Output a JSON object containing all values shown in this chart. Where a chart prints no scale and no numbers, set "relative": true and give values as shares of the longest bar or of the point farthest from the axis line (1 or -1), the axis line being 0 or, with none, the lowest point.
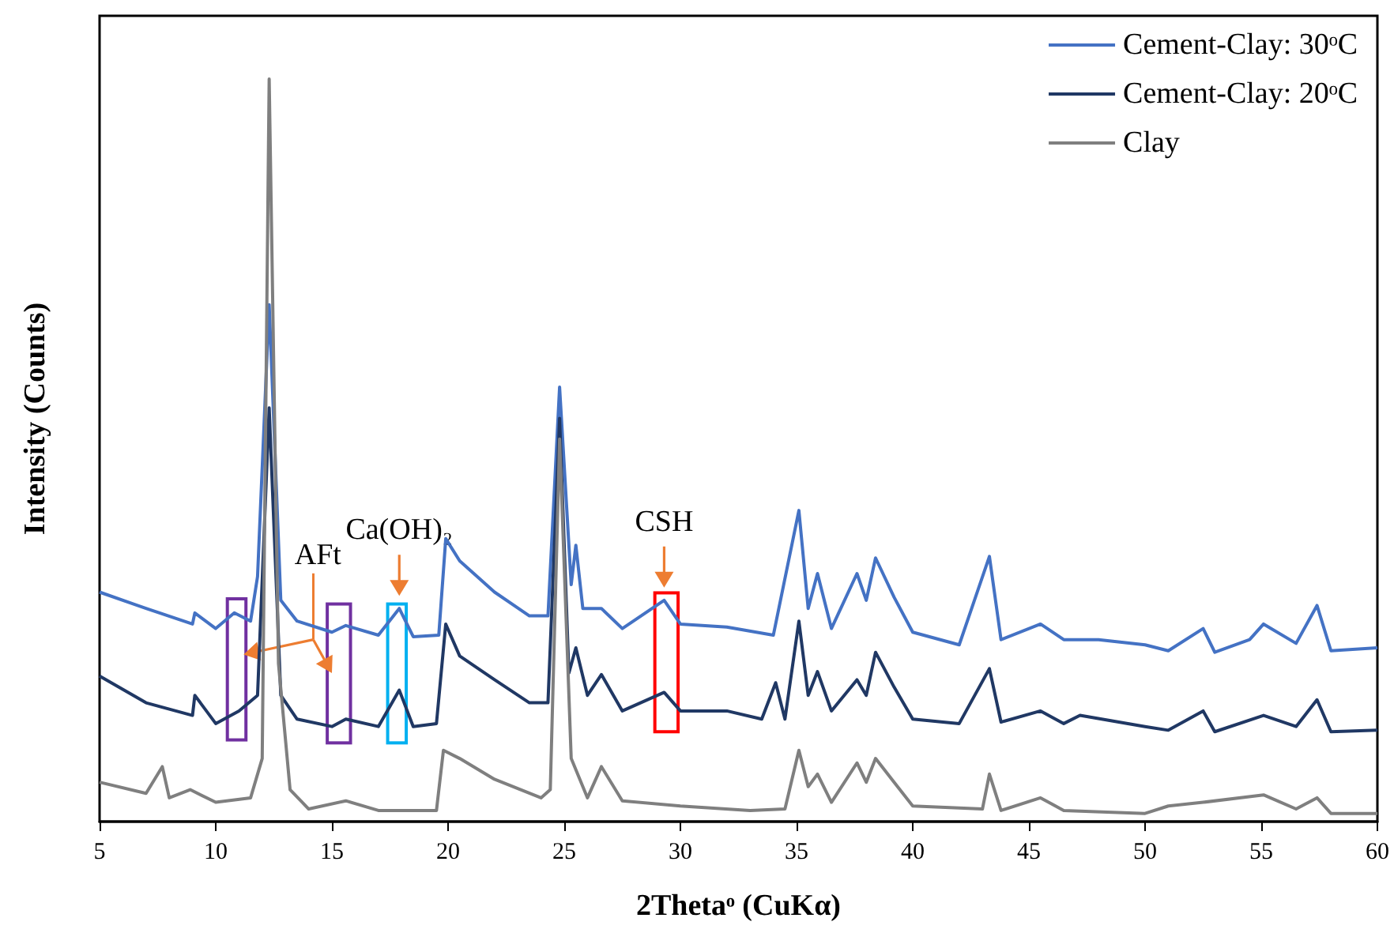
{
  "chart_data": {
    "type": "line",
    "relative": true,
    "xlabel": "2Thetaᵒ (CuKα)",
    "ylabel": "Intensity (Counts)",
    "xlim": [
      5,
      60
    ],
    "xticks": [
      5,
      10,
      15,
      20,
      25,
      30,
      35,
      40,
      45,
      50,
      55,
      60
    ],
    "grid": false,
    "legend": "top right",
    "marker": "none",
    "line_style": "solid",
    "annotations": [
      "AFt",
      {
        "text": "Ca(OH)₂",
        "x": 17.9,
        "y": 0.287
      },
      {
        "text": "CSH",
        "x": 29.3,
        "y": 0.298
      }
    ],
    "series": [
      {
        "name": "Cement-Clay: 30ᵒC",
        "color": "#4472c4",
        "x": [
          5,
          7,
          9,
          9.1,
          10,
          10.8,
          11.5,
          11.8,
          12.3,
          12.8,
          13.5,
          15,
          15.6,
          17,
          17.9,
          18.5,
          19.6,
          19.9,
          20.5,
          22,
          23.5,
          24.3,
          24.8,
          25.3,
          25.5,
          25.8,
          26.6,
          27.5,
          29.3,
          30,
          32,
          34,
          35.1,
          35.5,
          35.9,
          36.5,
          37.6,
          38,
          38.4,
          39.2,
          40,
          42,
          43.3,
          43.8,
          45.5,
          46.5,
          48,
          50,
          51,
          52.5,
          53,
          54.5,
          55.1,
          56.5,
          57.4,
          58,
          60
        ],
        "values": [
          0.309,
          0.287,
          0.266,
          0.281,
          0.26,
          0.281,
          0.27,
          0.33,
          0.696,
          0.298,
          0.27,
          0.255,
          0.264,
          0.251,
          0.287,
          0.249,
          0.251,
          0.381,
          0.351,
          0.309,
          0.277,
          0.277,
          0.585,
          0.319,
          0.372,
          0.287,
          0.287,
          0.26,
          0.298,
          0.266,
          0.262,
          0.251,
          0.419,
          0.287,
          0.334,
          0.26,
          0.334,
          0.298,
          0.355,
          0.302,
          0.255,
          0.238,
          0.357,
          0.245,
          0.266,
          0.245,
          0.245,
          0.238,
          0.23,
          0.26,
          0.228,
          0.245,
          0.266,
          0.24,
          0.291,
          0.23,
          0.234
        ]
      },
      {
        "name": "Cement-Clay: 20ᵒC",
        "color": "#203864",
        "x": [
          5,
          7,
          9,
          9.1,
          10,
          11,
          11.8,
          12.3,
          12.8,
          13.5,
          15,
          15.6,
          17,
          17.9,
          18.5,
          19.5,
          19.9,
          20.5,
          22,
          23.5,
          24.3,
          24.8,
          25.2,
          25.5,
          26,
          26.6,
          27.5,
          29.3,
          30,
          32,
          33.5,
          34.1,
          34.5,
          35.1,
          35.5,
          35.9,
          36.5,
          37.6,
          38,
          38.4,
          39.2,
          40,
          42,
          43.3,
          43.8,
          45.5,
          46.5,
          47.2,
          50,
          51,
          52.5,
          53,
          55.1,
          56.5,
          57.4,
          58,
          60
        ],
        "values": [
          0.196,
          0.16,
          0.143,
          0.17,
          0.132,
          0.149,
          0.17,
          0.557,
          0.17,
          0.138,
          0.128,
          0.138,
          0.128,
          0.177,
          0.128,
          0.132,
          0.266,
          0.223,
          0.191,
          0.16,
          0.16,
          0.543,
          0.2,
          0.234,
          0.17,
          0.198,
          0.149,
          0.174,
          0.149,
          0.149,
          0.138,
          0.187,
          0.138,
          0.27,
          0.17,
          0.202,
          0.149,
          0.191,
          0.17,
          0.228,
          0.181,
          0.138,
          0.132,
          0.206,
          0.134,
          0.149,
          0.132,
          0.143,
          0.128,
          0.123,
          0.149,
          0.121,
          0.143,
          0.128,
          0.164,
          0.121,
          0.123
        ]
      },
      {
        "name": "Clay",
        "color": "#7f7f7f",
        "x": [
          5,
          7,
          7.7,
          8,
          8.9,
          10,
          11.5,
          12,
          12.3,
          12.7,
          13.2,
          14,
          15.6,
          17,
          19.5,
          19.8,
          20.5,
          22,
          24,
          24.4,
          24.8,
          25.3,
          26,
          26.6,
          27.5,
          30,
          33,
          34.5,
          35.1,
          35.5,
          35.9,
          36.5,
          37.6,
          38,
          38.4,
          39.2,
          40,
          43,
          43.3,
          43.8,
          45.5,
          46.5,
          50,
          51,
          52.5,
          55.1,
          56.5,
          57.4,
          58,
          60
        ],
        "values": [
          0.053,
          0.038,
          0.074,
          0.032,
          0.043,
          0.026,
          0.032,
          0.085,
          1,
          0.213,
          0.043,
          0.017,
          0.028,
          0.015,
          0.015,
          0.096,
          0.085,
          0.057,
          0.032,
          0.043,
          0.515,
          0.085,
          0.032,
          0.074,
          0.028,
          0.021,
          0.015,
          0.017,
          0.096,
          0.047,
          0.064,
          0.026,
          0.079,
          0.053,
          0.085,
          0.053,
          0.021,
          0.017,
          0.064,
          0.015,
          0.032,
          0.015,
          0.011,
          0.021,
          0.026,
          0.036,
          0.017,
          0.032,
          0.011,
          0.011
        ]
      }
    ]
  }
}
